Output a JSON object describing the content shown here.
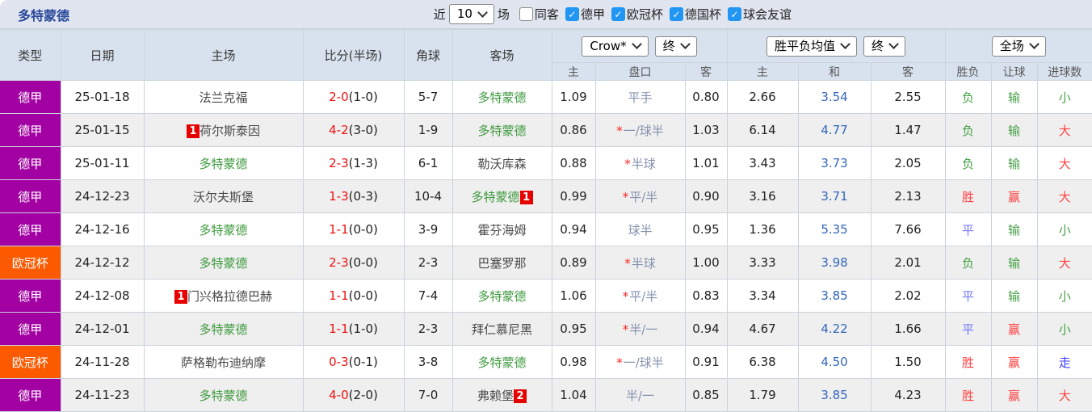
{
  "title": "多特蒙德",
  "filter": {
    "near_label": "近",
    "count_value": "10",
    "games_label": "场",
    "same_venue_label": "同客",
    "same_venue_checked": false,
    "leagues": [
      {
        "label": "德甲",
        "checked": true
      },
      {
        "label": "欧冠杯",
        "checked": true
      },
      {
        "label": "德国杯",
        "checked": true
      },
      {
        "label": "球会友谊",
        "checked": true
      }
    ]
  },
  "table": {
    "headers": {
      "type": "类型",
      "date": "日期",
      "home": "主场",
      "score": "比分(半场)",
      "corner": "角球",
      "away": "客场",
      "sub": {
        "odds_home": "主",
        "handicap": "盘口",
        "odds_away": "客",
        "avg_home": "主",
        "avg_draw": "和",
        "avg_away": "客",
        "result": "胜负",
        "handicap_result": "让球",
        "goals": "进球数"
      }
    },
    "selects": {
      "company": "Crow*",
      "company_time": "终",
      "avg": "胜平负均值",
      "avg_time": "终",
      "period": "全场"
    },
    "rows": [
      {
        "type": "德甲",
        "date": "25-01-18",
        "home": {
          "name": "法兰克福",
          "dortmund": false
        },
        "score": {
          "full": "2-0",
          "half": "(1-0)"
        },
        "corner": "5-7",
        "away": {
          "name": "多特蒙德",
          "dortmund": true
        },
        "odds": {
          "home": "1.09",
          "star": false,
          "handicap": "平手",
          "away": "0.80"
        },
        "avg": {
          "home": "2.66",
          "draw": "3.54",
          "away": "2.55"
        },
        "result": {
          "text": "负",
          "color": "green"
        },
        "let": {
          "text": "输",
          "color": "green"
        },
        "goals": {
          "text": "小",
          "color": "green"
        }
      },
      {
        "type": "德甲",
        "date": "25-01-15",
        "home": {
          "name": "荷尔斯泰因",
          "dortmund": false,
          "badge_before": "1"
        },
        "score": {
          "full": "4-2",
          "half": "(3-0)"
        },
        "corner": "1-9",
        "away": {
          "name": "多特蒙德",
          "dortmund": true
        },
        "odds": {
          "home": "0.86",
          "star": true,
          "handicap": "一/球半",
          "away": "1.03"
        },
        "avg": {
          "home": "6.14",
          "draw": "4.77",
          "away": "1.47"
        },
        "result": {
          "text": "负",
          "color": "green"
        },
        "let": {
          "text": "输",
          "color": "green"
        },
        "goals": {
          "text": "大",
          "color": "red"
        }
      },
      {
        "type": "德甲",
        "date": "25-01-11",
        "home": {
          "name": "多特蒙德",
          "dortmund": true
        },
        "score": {
          "full": "2-3",
          "half": "(1-3)"
        },
        "corner": "6-1",
        "away": {
          "name": "勒沃库森",
          "dortmund": false
        },
        "odds": {
          "home": "0.88",
          "star": true,
          "handicap": "半球",
          "away": "1.01"
        },
        "avg": {
          "home": "3.43",
          "draw": "3.73",
          "away": "2.05"
        },
        "result": {
          "text": "负",
          "color": "green"
        },
        "let": {
          "text": "输",
          "color": "green"
        },
        "goals": {
          "text": "大",
          "color": "red"
        }
      },
      {
        "type": "德甲",
        "date": "24-12-23",
        "home": {
          "name": "沃尔夫斯堡",
          "dortmund": false
        },
        "score": {
          "full": "1-3",
          "half": "(0-3)"
        },
        "corner": "10-4",
        "away": {
          "name": "多特蒙德",
          "dortmund": true,
          "badge_after": "1"
        },
        "odds": {
          "home": "0.99",
          "star": true,
          "handicap": "平/半",
          "away": "0.90"
        },
        "avg": {
          "home": "3.16",
          "draw": "3.71",
          "away": "2.13"
        },
        "result": {
          "text": "胜",
          "color": "red"
        },
        "let": {
          "text": "赢",
          "color": "red"
        },
        "goals": {
          "text": "大",
          "color": "red"
        }
      },
      {
        "type": "德甲",
        "date": "24-12-16",
        "home": {
          "name": "多特蒙德",
          "dortmund": true
        },
        "score": {
          "full": "1-1",
          "half": "(0-0)"
        },
        "corner": "3-9",
        "away": {
          "name": "霍芬海姆",
          "dortmund": false
        },
        "odds": {
          "home": "0.94",
          "star": false,
          "handicap": "球半",
          "away": "0.95"
        },
        "avg": {
          "home": "1.36",
          "draw": "5.35",
          "away": "7.66"
        },
        "result": {
          "text": "平",
          "color": "blue"
        },
        "let": {
          "text": "输",
          "color": "green"
        },
        "goals": {
          "text": "小",
          "color": "green"
        }
      },
      {
        "type": "欧冠杯",
        "date": "24-12-12",
        "home": {
          "name": "多特蒙德",
          "dortmund": true
        },
        "score": {
          "full": "2-3",
          "half": "(0-0)"
        },
        "corner": "2-3",
        "away": {
          "name": "巴塞罗那",
          "dortmund": false
        },
        "odds": {
          "home": "0.89",
          "star": true,
          "handicap": "半球",
          "away": "1.00"
        },
        "avg": {
          "home": "3.33",
          "draw": "3.98",
          "away": "2.01"
        },
        "result": {
          "text": "负",
          "color": "green"
        },
        "let": {
          "text": "输",
          "color": "green"
        },
        "goals": {
          "text": "大",
          "color": "red"
        }
      },
      {
        "type": "德甲",
        "date": "24-12-08",
        "home": {
          "name": "门兴格拉德巴赫",
          "dortmund": false,
          "badge_before": "1"
        },
        "score": {
          "full": "1-1",
          "half": "(0-0)"
        },
        "corner": "7-4",
        "away": {
          "name": "多特蒙德",
          "dortmund": true
        },
        "odds": {
          "home": "1.06",
          "star": true,
          "handicap": "平/半",
          "away": "0.83"
        },
        "avg": {
          "home": "3.34",
          "draw": "3.85",
          "away": "2.02"
        },
        "result": {
          "text": "平",
          "color": "blue"
        },
        "let": {
          "text": "输",
          "color": "green"
        },
        "goals": {
          "text": "小",
          "color": "green"
        }
      },
      {
        "type": "德甲",
        "date": "24-12-01",
        "home": {
          "name": "多特蒙德",
          "dortmund": true
        },
        "score": {
          "full": "1-1",
          "half": "(1-0)"
        },
        "corner": "2-3",
        "away": {
          "name": "拜仁慕尼黑",
          "dortmund": false
        },
        "odds": {
          "home": "0.95",
          "star": true,
          "handicap": "半/一",
          "away": "0.94"
        },
        "avg": {
          "home": "4.67",
          "draw": "4.22",
          "away": "1.66"
        },
        "result": {
          "text": "平",
          "color": "blue"
        },
        "let": {
          "text": "赢",
          "color": "red"
        },
        "goals": {
          "text": "小",
          "color": "green"
        }
      },
      {
        "type": "欧冠杯",
        "date": "24-11-28",
        "home": {
          "name": "萨格勒布迪纳摩",
          "dortmund": false
        },
        "score": {
          "full": "0-3",
          "half": "(0-1)"
        },
        "corner": "3-8",
        "away": {
          "name": "多特蒙德",
          "dortmund": true
        },
        "odds": {
          "home": "0.98",
          "star": true,
          "handicap": "一/球半",
          "away": "0.91"
        },
        "avg": {
          "home": "6.38",
          "draw": "4.50",
          "away": "1.50"
        },
        "result": {
          "text": "胜",
          "color": "red"
        },
        "let": {
          "text": "赢",
          "color": "red"
        },
        "goals": {
          "text": "走",
          "color": "dblue"
        }
      },
      {
        "type": "德甲",
        "date": "24-11-23",
        "home": {
          "name": "多特蒙德",
          "dortmund": true
        },
        "score": {
          "full": "4-0",
          "half": "(2-0)"
        },
        "corner": "7-0",
        "away": {
          "name": "弗赖堡",
          "dortmund": false,
          "badge_after": "2"
        },
        "odds": {
          "home": "1.04",
          "star": false,
          "handicap": "半/一",
          "away": "0.85"
        },
        "avg": {
          "home": "1.79",
          "draw": "3.85",
          "away": "4.23"
        },
        "result": {
          "text": "胜",
          "color": "red"
        },
        "let": {
          "text": "赢",
          "color": "red"
        },
        "goals": {
          "text": "大",
          "color": "red"
        }
      }
    ]
  },
  "colors": {
    "league": {
      "德甲": "#a300a3",
      "欧冠杯": "#fb5a00"
    },
    "accent_checkbox": "#2196f3",
    "score_red": "#ee1111",
    "dortmund_green": "#3f9a3f",
    "avg_draw_blue": "#3366bb"
  }
}
